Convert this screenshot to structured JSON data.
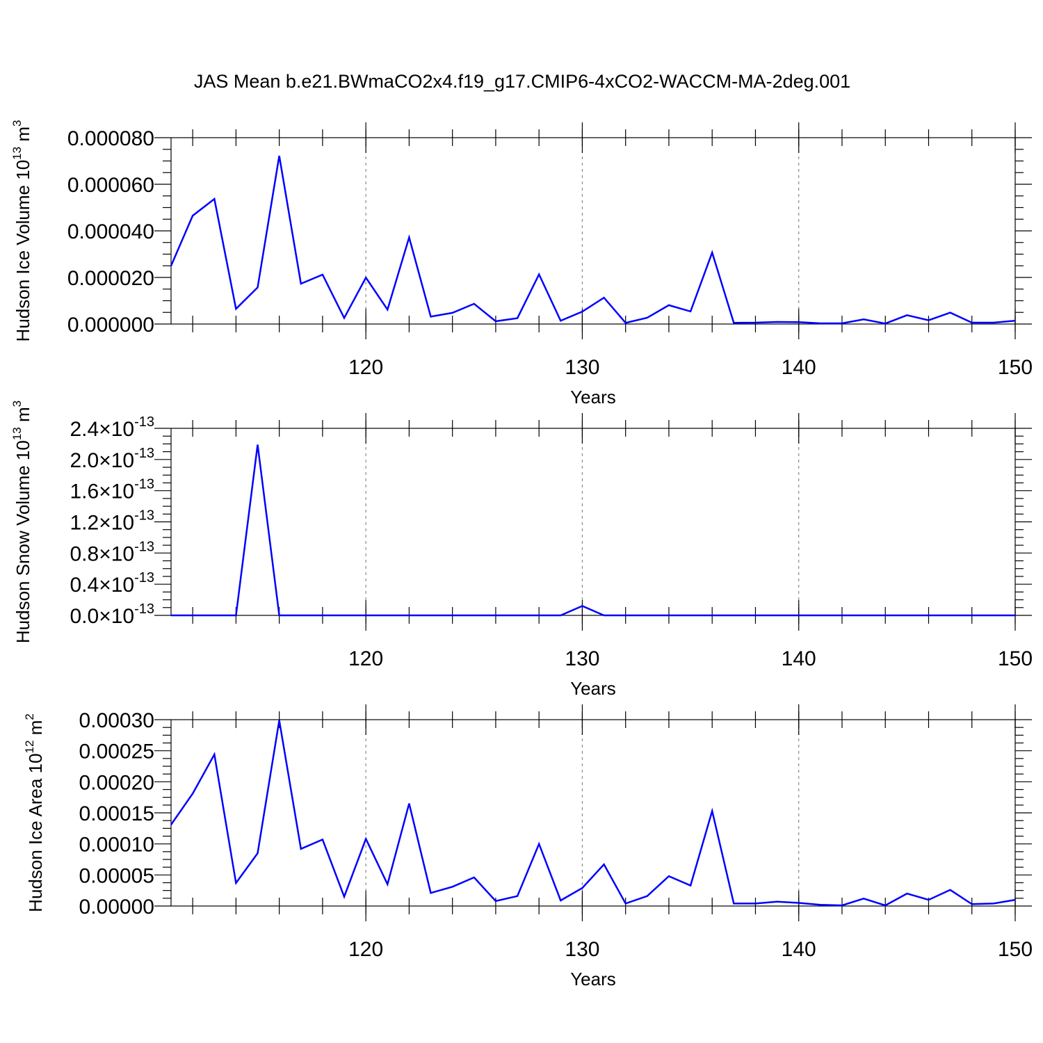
{
  "title": "JAS Mean b.e21.BWmaCO2x4.f19_g17.CMIP6-4xCO2-WACCM-MA-2deg.001",
  "line_color": "#0000ff",
  "chart_data": [
    {
      "type": "line",
      "ylabel": "Hudson Ice Volume 10",
      "ylabel_sup": "13",
      "ylabel_unit": "m",
      "ylabel_unit_sup": "3",
      "xlabel": "Years",
      "xlim": [
        111,
        150
      ],
      "ylim": [
        0,
        8e-05
      ],
      "x_ticks": [
        120,
        130,
        140,
        150
      ],
      "y_ticks": [
        0,
        2e-05,
        4e-05,
        6e-05,
        8e-05
      ],
      "y_tick_labels": [
        "0.000000",
        "0.000020",
        "0.000040",
        "0.000060",
        "0.000080"
      ],
      "grid_x": true,
      "x": [
        111,
        112,
        113,
        114,
        115,
        116,
        117,
        118,
        119,
        120,
        121,
        122,
        123,
        124,
        125,
        126,
        127,
        128,
        129,
        130,
        131,
        132,
        133,
        134,
        135,
        136,
        137,
        138,
        139,
        140,
        141,
        142,
        143,
        144,
        145,
        146,
        147,
        148,
        149,
        150
      ],
      "values": [
        2.5e-05,
        4.65e-05,
        5.37e-05,
        6.5e-06,
        1.57e-05,
        7.22e-05,
        1.73e-05,
        2.12e-05,
        2.6e-06,
        1.99e-05,
        6.2e-06,
        3.72e-05,
        3.2e-06,
        4.8e-06,
        8.7e-06,
        1.2e-06,
        2.5e-06,
        2.13e-05,
        1.4e-06,
        5.3e-06,
        1.13e-05,
        5e-07,
        2.7e-06,
        8.1e-06,
        5.4e-06,
        3.07e-05,
        5e-07,
        6e-07,
        9e-07,
        8e-07,
        3e-07,
        3e-07,
        2e-06,
        2e-07,
        3.8e-06,
        1.6e-06,
        4.9e-06,
        6e-07,
        6e-07,
        1.4e-06
      ]
    },
    {
      "type": "line",
      "ylabel": "Hudson Snow Volume 10",
      "ylabel_sup": "13",
      "ylabel_unit": "m",
      "ylabel_unit_sup": "3",
      "xlabel": "Years",
      "xlim": [
        111,
        150
      ],
      "ylim": [
        0,
        2.4e-13
      ],
      "x_ticks": [
        120,
        130,
        140,
        150
      ],
      "y_ticks": [
        0,
        4e-14,
        8e-14,
        1.2e-13,
        1.6e-13,
        2e-13,
        2.4e-13
      ],
      "y_tick_labels": [
        "0.0",
        "0.4",
        "0.8",
        "1.2",
        "1.6",
        "2.0",
        "2.4"
      ],
      "y_tick_exponent": "-13",
      "grid_x": true,
      "x": [
        111,
        112,
        113,
        114,
        115,
        116,
        117,
        118,
        119,
        120,
        121,
        122,
        123,
        124,
        125,
        126,
        127,
        128,
        129,
        130,
        131,
        132,
        133,
        134,
        135,
        136,
        137,
        138,
        139,
        140,
        141,
        142,
        143,
        144,
        145,
        146,
        147,
        148,
        149,
        150
      ],
      "values": [
        0,
        0,
        0,
        0,
        2.19e-13,
        0,
        0,
        0,
        0,
        0,
        0,
        0,
        0,
        0,
        0,
        0,
        0,
        0,
        0,
        1.2e-14,
        0,
        0,
        0,
        0,
        0,
        0,
        0,
        0,
        0,
        0,
        0,
        0,
        0,
        0,
        0,
        0,
        0,
        0,
        0,
        0
      ]
    },
    {
      "type": "line",
      "ylabel": "Hudson Ice Area 10",
      "ylabel_sup": "12",
      "ylabel_unit": "m",
      "ylabel_unit_sup": "2",
      "xlabel": "Years",
      "xlim": [
        111,
        150
      ],
      "ylim": [
        0,
        0.0003
      ],
      "x_ticks": [
        120,
        130,
        140,
        150
      ],
      "y_ticks": [
        0,
        5e-05,
        0.0001,
        0.00015,
        0.0002,
        0.00025,
        0.0003
      ],
      "y_tick_labels": [
        "0.00000",
        "0.00005",
        "0.00010",
        "0.00015",
        "0.00020",
        "0.00025",
        "0.00030"
      ],
      "grid_x": true,
      "x": [
        111,
        112,
        113,
        114,
        115,
        116,
        117,
        118,
        119,
        120,
        121,
        122,
        123,
        124,
        125,
        126,
        127,
        128,
        129,
        130,
        131,
        132,
        133,
        134,
        135,
        136,
        137,
        138,
        139,
        140,
        141,
        142,
        143,
        144,
        145,
        146,
        147,
        148,
        149,
        150
      ],
      "values": [
        0.000131,
        0.000181,
        0.000244,
        3.7e-05,
        8.5e-05,
        0.000299,
        9.2e-05,
        0.000107,
        1.5e-05,
        0.000108,
        3.5e-05,
        0.000165,
        2.1e-05,
        3.1e-05,
        4.6e-05,
        8e-06,
        1.6e-05,
        0.0001,
        9e-06,
        2.9e-05,
        6.7e-05,
        4e-06,
        1.6e-05,
        4.8e-05,
        3.3e-05,
        0.000153,
        4e-06,
        4e-06,
        7e-06,
        5e-06,
        2e-06,
        1e-06,
        1.2e-05,
        1e-06,
        2e-05,
        1e-05,
        2.6e-05,
        3e-06,
        4e-06,
        1e-05
      ]
    }
  ]
}
